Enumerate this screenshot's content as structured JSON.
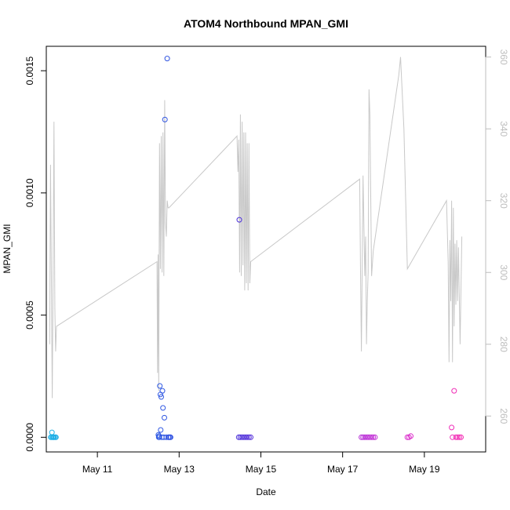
{
  "chart_data": {
    "type": "scatter",
    "title": "ATOM4 Northbound MPAN_GMI",
    "xlabel": "Date",
    "ylabel": "MPAN_GMI",
    "y2label": "",
    "xlim": [
      "2016-05-09T18:00",
      "2016-05-20T12:00"
    ],
    "ylim": [
      -6e-05,
      0.0016
    ],
    "y2lim": [
      250,
      363
    ],
    "x_ticks": [
      {
        "label": "May 11",
        "value": "2016-05-11"
      },
      {
        "label": "May 13",
        "value": "2016-05-13"
      },
      {
        "label": "May 15",
        "value": "2016-05-15"
      },
      {
        "label": "May 17",
        "value": "2016-05-17"
      },
      {
        "label": "May 19",
        "value": "2016-05-19"
      }
    ],
    "y_ticks": [
      {
        "label": "0.0000",
        "value": 0.0
      },
      {
        "label": "0.0005",
        "value": 0.0005
      },
      {
        "label": "0.0010",
        "value": 0.001
      },
      {
        "label": "0.0015",
        "value": 0.0015
      }
    ],
    "y2_ticks": [
      {
        "label": "260",
        "value": 260
      },
      {
        "label": "280",
        "value": 280
      },
      {
        "label": "300",
        "value": 300
      },
      {
        "label": "320",
        "value": 320
      },
      {
        "label": "340",
        "value": 340
      },
      {
        "label": "360",
        "value": 360
      }
    ],
    "grid": false,
    "legend": "none",
    "colors": {
      "secondary_line": "#c8c8c8",
      "secondary_axis": "#bdbdbd",
      "point_gradient": [
        "#1fb6e6",
        "#2a6ae8",
        "#3a2fd6",
        "#8a2be2",
        "#d62fd0",
        "#ff2aa8"
      ]
    },
    "series": [
      {
        "type": "scatter",
        "marker": "open-circle",
        "x": [
          "2016-05-09T20:40",
          "2016-05-09T21:00",
          "2016-05-09T21:20",
          "2016-05-09T21:40",
          "2016-05-09T22:00",
          "2016-05-09T22:20",
          "2016-05-09T22:40",
          "2016-05-09T23:20",
          "2016-05-09T23:40",
          "2016-05-12T11:50",
          "2016-05-12T12:00",
          "2016-05-12T12:10",
          "2016-05-12T12:20",
          "2016-05-12T12:40",
          "2016-05-12T13:00",
          "2016-05-12T13:10",
          "2016-05-12T13:30",
          "2016-05-12T13:50",
          "2016-05-12T14:10",
          "2016-05-12T14:30",
          "2016-05-12T15:00",
          "2016-05-12T15:20",
          "2016-05-12T15:40",
          "2016-05-12T16:30",
          "2016-05-12T17:00",
          "2016-05-12T17:40",
          "2016-05-12T18:00",
          "2016-05-12T18:40",
          "2016-05-12T19:00",
          "2016-05-14T11:00",
          "2016-05-14T11:20",
          "2016-05-14T12:00",
          "2016-05-14T13:00",
          "2016-05-14T14:00",
          "2016-05-14T15:00",
          "2016-05-14T16:00",
          "2016-05-14T17:00",
          "2016-05-14T18:00",
          "2016-05-17T11:00",
          "2016-05-17T12:00",
          "2016-05-17T13:00",
          "2016-05-17T14:00",
          "2016-05-17T15:00",
          "2016-05-17T16:00",
          "2016-05-17T17:00",
          "2016-05-17T18:00",
          "2016-05-17T19:00",
          "2016-05-18T14:00",
          "2016-05-18T15:00",
          "2016-05-18T16:00",
          "2016-05-19T16:00",
          "2016-05-19T16:30",
          "2016-05-19T17:30",
          "2016-05-19T18:30",
          "2016-05-19T19:30",
          "2016-05-19T20:30",
          "2016-05-19T21:30"
        ],
        "y": [
          0.0,
          0.0,
          2e-05,
          0.0,
          0.0,
          0.0,
          0.0,
          0.0,
          0.0,
          1e-05,
          0.0,
          5e-06,
          0.0,
          0.00021,
          0.000175,
          3e-05,
          0.000165,
          0.0,
          0.00019,
          0.00012,
          0.0,
          8e-05,
          0.0013,
          0.0,
          0.00155,
          0.0,
          0.0,
          0.0,
          0.0,
          0.0,
          0.00089,
          0.0,
          0.0,
          0.0,
          0.0,
          0.0,
          0.0,
          0.0,
          0.0,
          0.0,
          0.0,
          0.0,
          0.0,
          0.0,
          0.0,
          0.0,
          0.0,
          0.0,
          0.0,
          5e-06,
          4e-05,
          0.0,
          0.00019,
          0.0,
          0.0,
          0.0,
          0.0
        ]
      },
      {
        "type": "line",
        "axis": "right",
        "x": [
          "2016-05-09T20:00",
          "2016-05-09T20:30",
          "2016-05-09T21:30",
          "2016-05-09T22:00",
          "2016-05-09T22:30",
          "2016-05-09T23:00",
          "2016-05-09T23:30",
          "2016-05-10T00:00",
          "2016-05-12T11:00",
          "2016-05-12T11:20",
          "2016-05-12T11:40",
          "2016-05-12T12:00",
          "2016-05-12T12:30",
          "2016-05-12T13:00",
          "2016-05-12T13:30",
          "2016-05-12T14:00",
          "2016-05-12T14:30",
          "2016-05-12T15:00",
          "2016-05-12T15:30",
          "2016-05-12T16:00",
          "2016-05-12T16:30",
          "2016-05-12T17:00",
          "2016-05-12T17:30",
          "2016-05-12T18:00",
          "2016-05-14T10:00",
          "2016-05-14T10:30",
          "2016-05-14T11:00",
          "2016-05-14T11:30",
          "2016-05-14T12:00",
          "2016-05-14T12:30",
          "2016-05-14T13:00",
          "2016-05-14T13:30",
          "2016-05-14T14:00",
          "2016-05-14T14:30",
          "2016-05-14T15:00",
          "2016-05-14T15:30",
          "2016-05-14T16:00",
          "2016-05-14T16:30",
          "2016-05-14T17:00",
          "2016-05-14T17:30",
          "2016-05-14T18:00",
          "2016-05-17T10:00",
          "2016-05-17T10:30",
          "2016-05-17T11:00",
          "2016-05-17T12:00",
          "2016-05-17T13:00",
          "2016-05-17T13:30",
          "2016-05-17T14:00",
          "2016-05-17T14:30",
          "2016-05-17T15:00",
          "2016-05-17T15:30",
          "2016-05-17T16:00",
          "2016-05-17T17:00",
          "2016-05-17T18:00",
          "2016-05-18T09:00",
          "2016-05-18T10:00",
          "2016-05-18T12:00",
          "2016-05-18T14:00",
          "2016-05-19T13:00",
          "2016-05-19T14:00",
          "2016-05-19T14:30",
          "2016-05-19T15:00",
          "2016-05-19T15:30",
          "2016-05-19T16:00",
          "2016-05-19T16:30",
          "2016-05-19T17:00",
          "2016-05-19T17:30",
          "2016-05-19T18:00",
          "2016-05-19T18:30",
          "2016-05-19T19:00",
          "2016-05-19T19:30",
          "2016-05-19T20:00",
          "2016-05-19T21:00",
          "2016-05-19T22:00"
        ],
        "y": [
          280,
          330,
          265,
          300,
          342,
          290,
          278,
          285,
          303,
          272,
          305,
          267,
          336,
          301,
          338,
          300,
          339,
          299,
          348,
          314,
          310,
          320,
          318,
          318,
          338,
          328,
          337,
          300,
          344,
          299,
          342,
          302,
          339,
          295,
          339,
          297,
          336,
          295,
          336,
          297,
          303,
          326,
          300,
          278,
          327,
          299,
          310,
          280,
          292,
          300,
          351,
          344,
          299,
          306,
          355,
          360,
          340,
          301,
          320,
          303,
          275,
          309,
          292,
          320,
          275,
          318,
          285,
          308,
          291,
          309,
          292,
          307,
          280,
          310
        ]
      }
    ]
  }
}
